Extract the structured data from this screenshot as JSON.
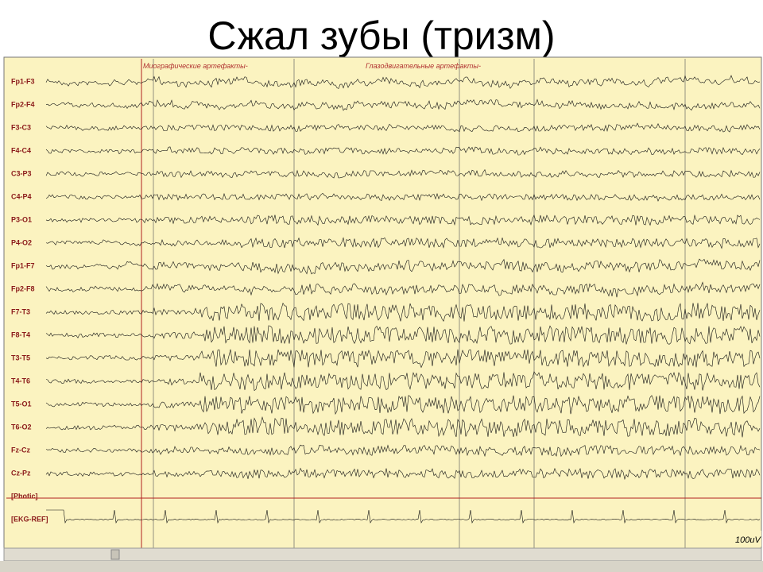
{
  "title": "Сжал зубы (тризм)",
  "annotations": [
    "Миографические артефакты-",
    "Глазодвигательные артефакты-"
  ],
  "channels": [
    "Fp1-F3",
    "Fp2-F4",
    "F3-C3",
    "F4-C4",
    "C3-P3",
    "C4-P4",
    "P3-O1",
    "P4-O2",
    "Fp1-F7",
    "Fp2-F8",
    "F7-T3",
    "F8-T4",
    "T3-T5",
    "T4-T6",
    "T5-O1",
    "T6-O2",
    "Fz-Cz",
    "Cz-Pz",
    "[Photic]",
    "[EKG-REF]"
  ],
  "scale_label": "100uV"
}
